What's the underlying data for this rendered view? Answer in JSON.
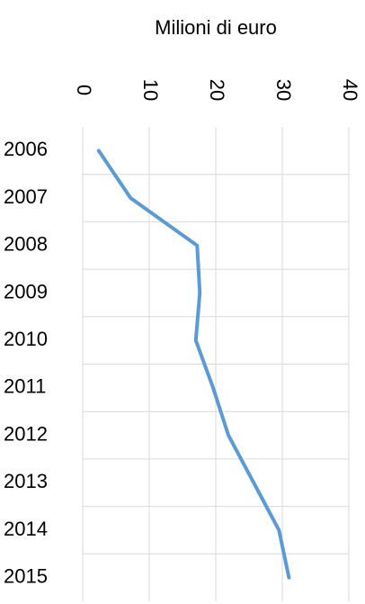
{
  "chart_data": {
    "type": "line",
    "xlabel": "Milioni di euro",
    "categories": [
      "2006",
      "2007",
      "2008",
      "2009",
      "2010",
      "2011",
      "2012",
      "2013",
      "2014",
      "2015"
    ],
    "series": [
      {
        "name": "Milioni di euro",
        "color": "#5b9bd5",
        "values": [
          2.4,
          7.2,
          17.2,
          17.6,
          17,
          19.6,
          21.9,
          25.7,
          29.5,
          31
        ]
      }
    ],
    "xlim": [
      0,
      40
    ],
    "xticks": [
      0,
      10,
      20,
      30,
      40
    ],
    "grid": true
  }
}
